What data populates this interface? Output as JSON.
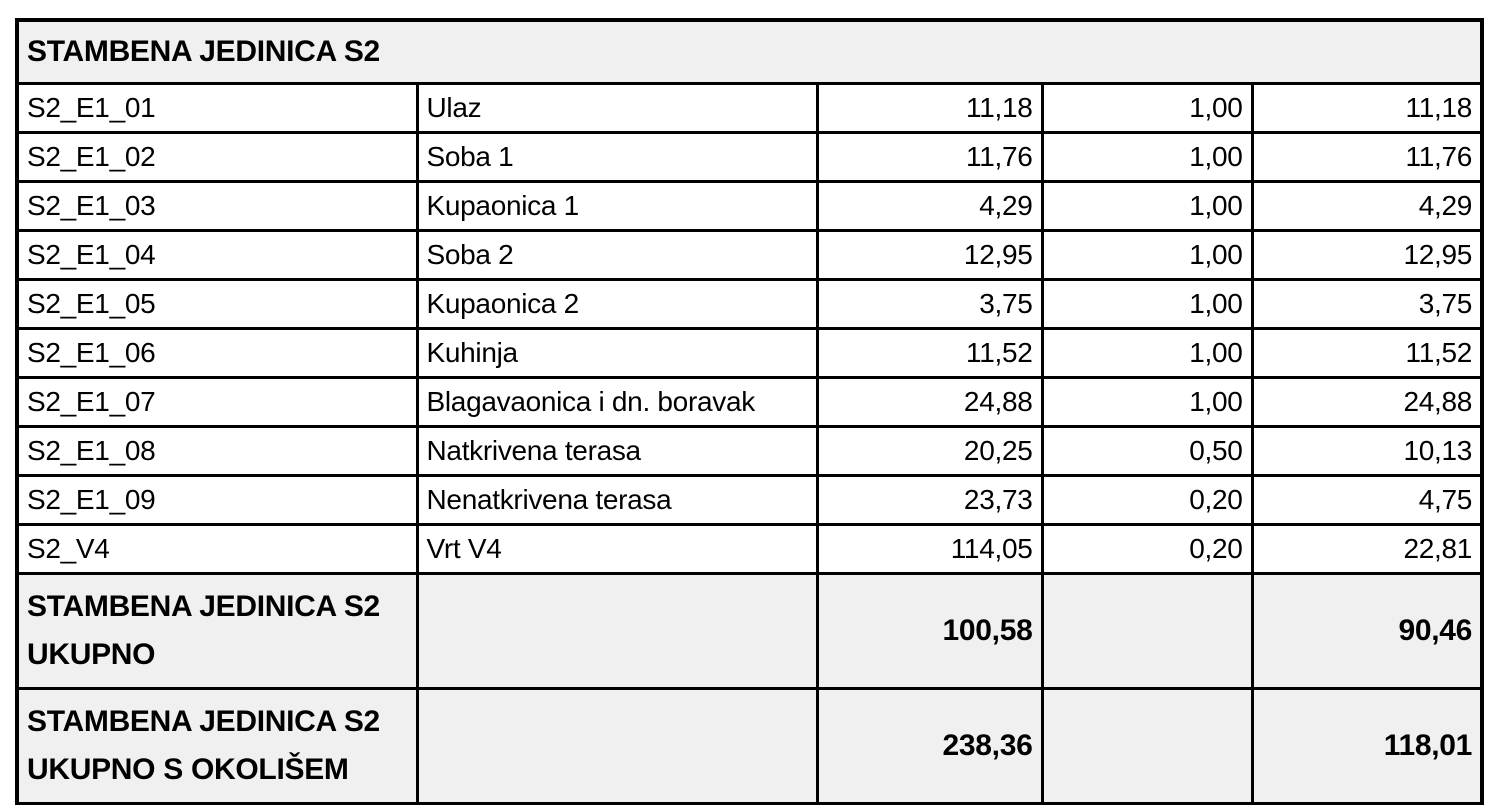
{
  "table": {
    "title": "STAMBENA JEDINICA S2",
    "rows": [
      {
        "code": "S2_E1_01",
        "name": "Ulaz",
        "area": "11,18",
        "coef": "1,00",
        "reduced": "11,18"
      },
      {
        "code": "S2_E1_02",
        "name": "Soba 1",
        "area": "11,76",
        "coef": "1,00",
        "reduced": "11,76"
      },
      {
        "code": "S2_E1_03",
        "name": "Kupaonica 1",
        "area": "4,29",
        "coef": "1,00",
        "reduced": "4,29"
      },
      {
        "code": "S2_E1_04",
        "name": "Soba 2",
        "area": "12,95",
        "coef": "1,00",
        "reduced": "12,95"
      },
      {
        "code": "S2_E1_05",
        "name": "Kupaonica 2",
        "area": "3,75",
        "coef": "1,00",
        "reduced": "3,75"
      },
      {
        "code": "S2_E1_06",
        "name": "Kuhinja",
        "area": "11,52",
        "coef": "1,00",
        "reduced": "11,52"
      },
      {
        "code": "S2_E1_07",
        "name": "Blagavaonica i dn. boravak",
        "area": "24,88",
        "coef": "1,00",
        "reduced": "24,88"
      },
      {
        "code": "S2_E1_08",
        "name": "Natkrivena terasa",
        "area": "20,25",
        "coef": "0,50",
        "reduced": "10,13"
      },
      {
        "code": "S2_E1_09",
        "name": "Nenatkrivena terasa",
        "area": "23,73",
        "coef": "0,20",
        "reduced": "4,75"
      },
      {
        "code": "S2_V4",
        "name": "Vrt V4",
        "area": "114,05",
        "coef": "0,20",
        "reduced": "22,81"
      }
    ],
    "totals": [
      {
        "label_line1": "STAMBENA JEDINICA S2",
        "label_line2": "UKUPNO",
        "area": "100,58",
        "coef": "",
        "reduced": "90,46"
      },
      {
        "label_line1": "STAMBENA JEDINICA S2",
        "label_line2": "UKUPNO S OKOLIŠEM",
        "area": "238,36",
        "coef": "",
        "reduced": "118,01"
      }
    ]
  },
  "colors": {
    "border": "#000000",
    "header_bg": "#f0f0f0",
    "row_bg": "#ffffff",
    "text": "#000000"
  }
}
